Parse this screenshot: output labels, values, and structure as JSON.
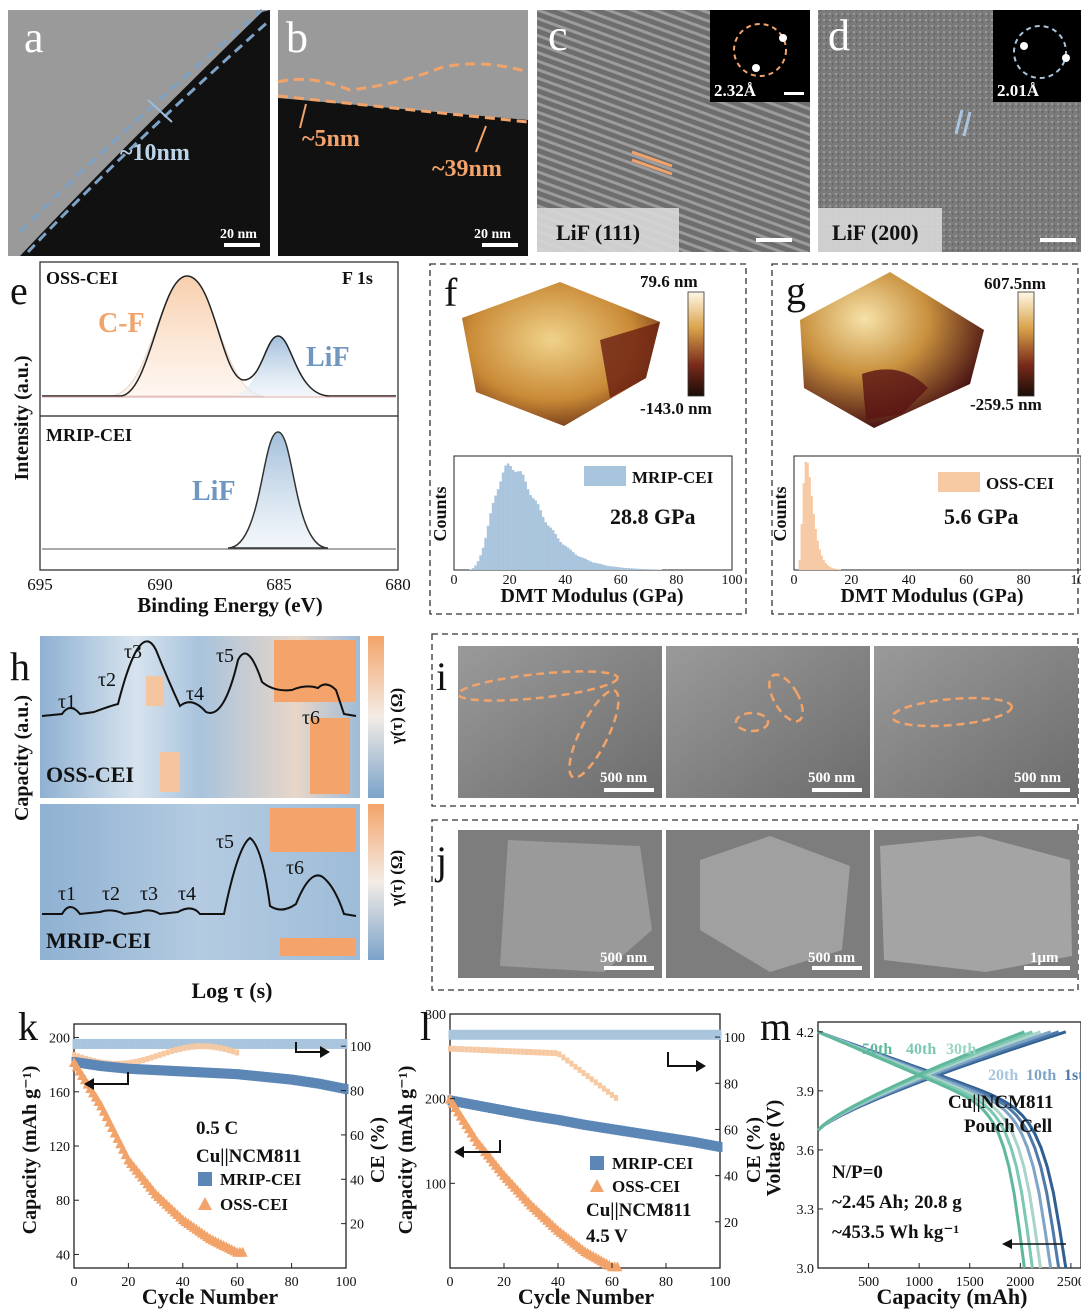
{
  "figure": {
    "a": {
      "letter": "a",
      "label": "~10nm",
      "scale": "20 nm"
    },
    "b": {
      "letter": "b",
      "label_thin": "~5nm",
      "label_thick": "~39nm",
      "scale": "20 nm"
    },
    "c": {
      "letter": "c",
      "plane": "LiF (111)",
      "d_spacing": "2.32Å"
    },
    "d": {
      "letter": "d",
      "plane": "LiF (200)",
      "d_spacing": "2.01Å"
    },
    "e": {
      "letter": "e",
      "top_label": "OSS-CEI",
      "element": "F 1s",
      "peak_cf": "C-F",
      "peak_lif_top": "LiF",
      "bottom_label": "MRIP-CEI",
      "peak_lif_bottom": "LiF",
      "ylabel": "Intensity (a.u.)",
      "xlabel": "Binding Energy (eV)",
      "xticks": [
        "695",
        "690",
        "685",
        "680"
      ]
    },
    "f": {
      "letter": "f",
      "cbar_max": "79.6 nm",
      "cbar_min": "-143.0 nm",
      "legend": "MRIP-CEI",
      "modulus": "28.8 GPa",
      "ylabel": "Counts",
      "xlabel": "DMT Modulus (GPa)",
      "xticks": [
        "0",
        "20",
        "40",
        "60",
        "80",
        "100"
      ]
    },
    "g": {
      "letter": "g",
      "cbar_max": "607.5nm",
      "cbar_min": "-259.5 nm",
      "legend": "OSS-CEI",
      "modulus": "5.6 GPa",
      "ylabel": "Counts",
      "xlabel": "DMT Modulus (GPa)",
      "xticks": [
        "0",
        "20",
        "40",
        "60",
        "80",
        "100"
      ]
    },
    "h": {
      "letter": "h",
      "top_label": "OSS-CEI",
      "bottom_label": "MRIP-CEI",
      "ylabel": "Capacity (a.u.)",
      "cbar_label": "γ(τ) (Ω)",
      "xlabel": "Log τ (s)",
      "taus_top": [
        "τ1",
        "τ2",
        "τ3",
        "τ4",
        "τ5",
        "τ6"
      ],
      "taus_bottom": [
        "τ1",
        "τ2",
        "τ3",
        "τ4",
        "τ5",
        "τ6"
      ]
    },
    "i": {
      "letter": "i",
      "scales": [
        "500 nm",
        "500 nm",
        "500 nm"
      ]
    },
    "j": {
      "letter": "j",
      "scales": [
        "500 nm",
        "500 nm",
        "1μm"
      ]
    },
    "k": {
      "letter": "k",
      "ylabel": "Capacity (mAh g⁻¹)",
      "y2label": "CE (%)",
      "xlabel": "Cycle Number",
      "rate": "0.5 C",
      "cell": "Cu||NCM811",
      "legend1": "MRIP-CEI",
      "legend2": "OSS-CEI",
      "yticks": [
        "40",
        "80",
        "120",
        "160",
        "200"
      ],
      "y2ticks": [
        "20",
        "40",
        "60",
        "80",
        "100"
      ],
      "xticks": [
        "0",
        "20",
        "40",
        "60",
        "80",
        "100"
      ]
    },
    "l": {
      "letter": "l",
      "ylabel": "Capacity (mAh g⁻¹)",
      "y2label": "CE (%)",
      "xlabel": "Cycle Number",
      "legend1": "MRIP-CEI",
      "legend2": "OSS-CEI",
      "cell": "Cu||NCM811",
      "voltage": "4.5 V",
      "yticks": [
        "100",
        "200",
        "300"
      ],
      "y2ticks": [
        "20",
        "40",
        "60",
        "80",
        "100"
      ],
      "xticks": [
        "0",
        "20",
        "40",
        "60",
        "80",
        "100"
      ]
    },
    "m": {
      "letter": "m",
      "ylabel": "Voltage (V)",
      "xlabel": "Capacity (mAh)",
      "cycles_top": [
        "50th",
        "40th",
        "30th"
      ],
      "cycles_right": [
        "20th",
        "10th",
        "1st"
      ],
      "cell_line1": "Cu||NCM811",
      "cell_line2": "Pouch Cell",
      "np": "N/P=0",
      "spec1": "~2.45 Ah; 20.8 g",
      "spec2": "~453.5 Wh kg⁻¹",
      "yticks": [
        "3.0",
        "3.3",
        "3.6",
        "3.9",
        "4.2"
      ],
      "xticks": [
        "500",
        "1000",
        "1500",
        "2000",
        "2500"
      ]
    }
  },
  "colors": {
    "orange": "#f2a36a",
    "blue": "#5b86b5",
    "light_blue": "#a9c4dd",
    "light_orange": "#f7c9a3",
    "teal": "#7cc8b4"
  },
  "chart_data": [
    {
      "type": "line",
      "panel": "k",
      "x": [
        0,
        10,
        20,
        30,
        40,
        50,
        60,
        70,
        80,
        90,
        100
      ],
      "series": [
        {
          "name": "MRIP-CEI",
          "values": [
            182,
            179,
            177,
            176,
            175,
            174,
            173,
            171,
            169,
            166,
            162
          ]
        },
        {
          "name": "OSS-CEI",
          "values": [
            182,
            150,
            110,
            85,
            66,
            52,
            42,
            null,
            null,
            null,
            null
          ]
        }
      ],
      "ylim": [
        30,
        210
      ]
    },
    {
      "type": "line",
      "panel": "l",
      "x": [
        0,
        10,
        20,
        30,
        40,
        50,
        60,
        70,
        80,
        90,
        100
      ],
      "series": [
        {
          "name": "MRIP-CEI",
          "values": [
            198,
            192,
            186,
            180,
            175,
            169,
            164,
            159,
            154,
            149,
            143
          ]
        },
        {
          "name": "OSS-CEI",
          "values": [
            200,
            150,
            110,
            75,
            45,
            20,
            2,
            null,
            null,
            null,
            null
          ]
        }
      ],
      "ylim": [
        0,
        300
      ]
    }
  ]
}
